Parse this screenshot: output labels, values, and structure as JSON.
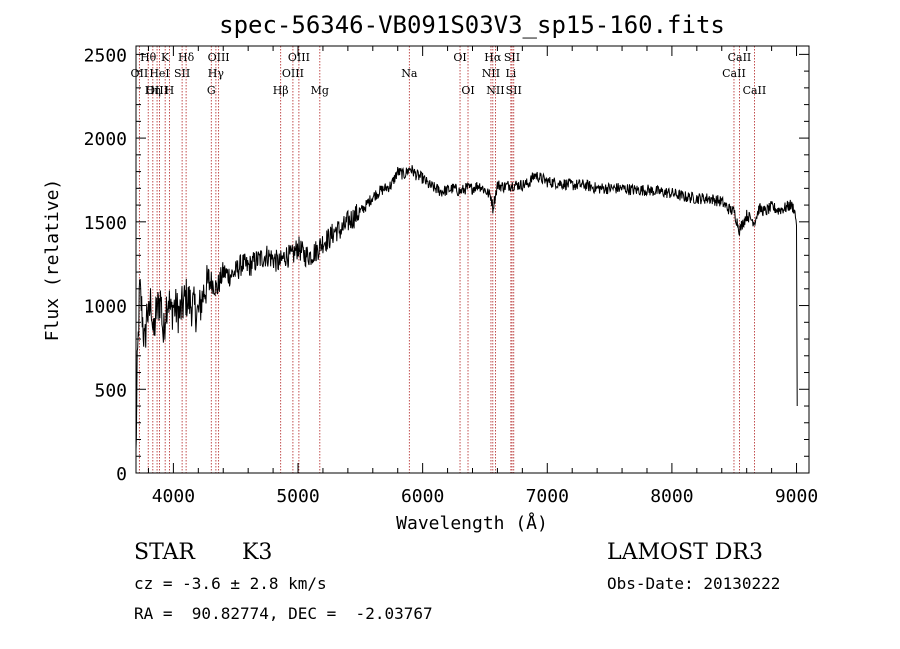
{
  "colors": {
    "spectrum": "#000000",
    "line_marker": "#b22222",
    "axes": "#000000"
  },
  "info": {
    "class_label": "STAR",
    "subclass": "K3",
    "survey": "LAMOST DR3",
    "cz": "cz = -3.6 ± 2.8 km/s",
    "obs_date": "Obs-Date: 20130222",
    "coords": "RA =  90.82774, DEC =  -2.03767"
  },
  "chart_data": {
    "type": "line",
    "title": "spec-56346-VB091S03V3_sp15-160.fits",
    "xlabel": "Wavelength (Å)",
    "ylabel": "Flux (relative)",
    "xlim": [
      3700,
      9100
    ],
    "ylim": [
      0,
      2550
    ],
    "xticks": [
      4000,
      5000,
      6000,
      7000,
      8000,
      9000
    ],
    "yticks": [
      0,
      500,
      1000,
      1500,
      2000,
      2500
    ],
    "series": [
      {
        "name": "flux",
        "x": [
          3700,
          3710,
          3730,
          3750,
          3770,
          3790,
          3800,
          3820,
          3840,
          3860,
          3880,
          3900,
          3920,
          3940,
          3960,
          3980,
          4000,
          4050,
          4100,
          4150,
          4200,
          4250,
          4300,
          4350,
          4400,
          4450,
          4500,
          4550,
          4600,
          4650,
          4700,
          4750,
          4800,
          4850,
          4900,
          4950,
          5000,
          5050,
          5100,
          5150,
          5200,
          5250,
          5300,
          5350,
          5400,
          5450,
          5500,
          5550,
          5600,
          5650,
          5700,
          5750,
          5800,
          5850,
          5900,
          5950,
          6000,
          6050,
          6100,
          6150,
          6200,
          6250,
          6300,
          6350,
          6400,
          6450,
          6500,
          6550,
          6563,
          6600,
          6650,
          6700,
          6750,
          6800,
          6850,
          6900,
          6950,
          7000,
          7100,
          7200,
          7300,
          7400,
          7500,
          7600,
          7700,
          7800,
          7900,
          8000,
          8100,
          8200,
          8300,
          8400,
          8450,
          8500,
          8542,
          8600,
          8662,
          8700,
          8750,
          8800,
          8850,
          8900,
          8950,
          8980,
          9000,
          9005
        ],
        "values": [
          100,
          600,
          1100,
          950,
          750,
          1000,
          900,
          1050,
          800,
          950,
          1000,
          1050,
          800,
          1000,
          1050,
          950,
          1000,
          950,
          1050,
          1000,
          950,
          1100,
          1150,
          1100,
          1200,
          1180,
          1200,
          1250,
          1230,
          1260,
          1280,
          1300,
          1280,
          1250,
          1300,
          1290,
          1350,
          1300,
          1300,
          1330,
          1380,
          1400,
          1450,
          1450,
          1500,
          1530,
          1560,
          1600,
          1650,
          1680,
          1700,
          1720,
          1800,
          1780,
          1820,
          1780,
          1760,
          1720,
          1700,
          1680,
          1690,
          1700,
          1680,
          1700,
          1700,
          1720,
          1690,
          1650,
          1580,
          1720,
          1710,
          1720,
          1720,
          1720,
          1730,
          1780,
          1760,
          1740,
          1730,
          1720,
          1720,
          1700,
          1700,
          1700,
          1690,
          1690,
          1680,
          1670,
          1650,
          1640,
          1640,
          1620,
          1580,
          1560,
          1450,
          1540,
          1500,
          1580,
          1560,
          1590,
          1570,
          1580,
          1600,
          1580,
          1500,
          400
        ]
      }
    ],
    "spectral_lines": [
      {
        "label": "Hθ",
        "wavelength": 3798,
        "row": 1
      },
      {
        "label": "OII",
        "wavelength": 3727,
        "row": 2
      },
      {
        "label": "OIII",
        "wavelength": 3869,
        "row": 3
      },
      {
        "label": "K",
        "wavelength": 3934,
        "row": 1
      },
      {
        "label": "HeI",
        "wavelength": 3889,
        "row": 2
      },
      {
        "label": "Hη",
        "wavelength": 3835,
        "row": 3
      },
      {
        "label": "Hδ",
        "wavelength": 4102,
        "row": 1
      },
      {
        "label": "SII",
        "wavelength": 4070,
        "row": 2
      },
      {
        "label": "H",
        "wavelength": 3968,
        "row": 3
      },
      {
        "label": "OIII",
        "wavelength": 4363,
        "row": 1
      },
      {
        "label": "Hγ",
        "wavelength": 4341,
        "row": 2
      },
      {
        "label": "G",
        "wavelength": 4304,
        "row": 3
      },
      {
        "label": "Hβ",
        "wavelength": 4861,
        "row": 3
      },
      {
        "label": "OIII",
        "wavelength": 5007,
        "row": 1
      },
      {
        "label": "OIII",
        "wavelength": 4959,
        "row": 2
      },
      {
        "label": "Mg",
        "wavelength": 5175,
        "row": 3
      },
      {
        "label": "Na",
        "wavelength": 5893,
        "row": 2
      },
      {
        "label": "OI",
        "wavelength": 6300,
        "row": 1
      },
      {
        "label": "OI",
        "wavelength": 6364,
        "row": 3
      },
      {
        "label": "Hα",
        "wavelength": 6563,
        "row": 1
      },
      {
        "label": "NII",
        "wavelength": 6548,
        "row": 2
      },
      {
        "label": "NII",
        "wavelength": 6584,
        "row": 3
      },
      {
        "label": "SII",
        "wavelength": 6717,
        "row": 1
      },
      {
        "label": "Li",
        "wavelength": 6708,
        "row": 2
      },
      {
        "label": "SII",
        "wavelength": 6731,
        "row": 3
      },
      {
        "label": "CaII",
        "wavelength": 8542,
        "row": 1
      },
      {
        "label": "CaII",
        "wavelength": 8498,
        "row": 2
      },
      {
        "label": "CaII",
        "wavelength": 8662,
        "row": 3
      }
    ]
  }
}
